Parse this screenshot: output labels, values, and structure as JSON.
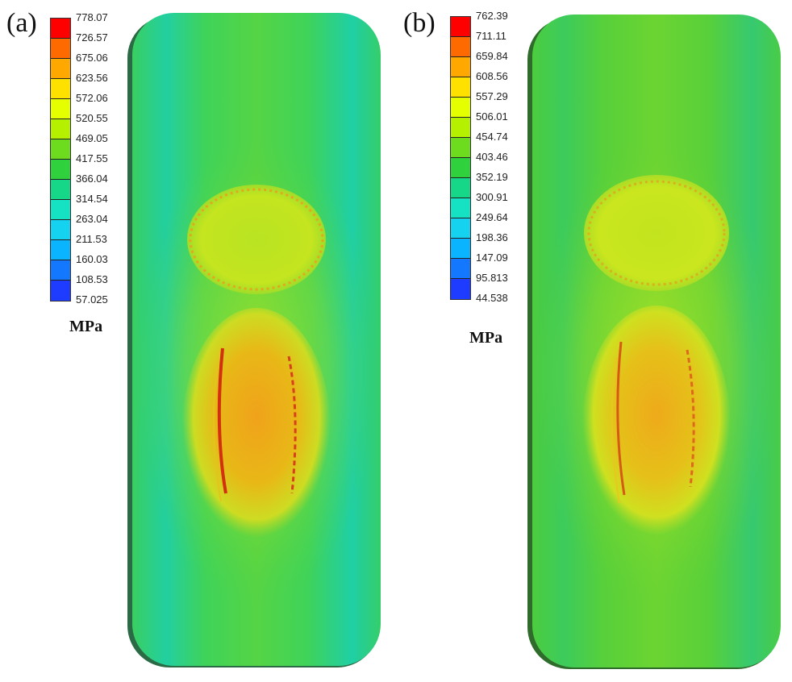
{
  "panels": [
    {
      "label": "(a)",
      "unit": "MPa",
      "ticks": [
        "778.07",
        "726.57",
        "675.06",
        "623.56",
        "572.06",
        "520.55",
        "469.05",
        "417.55",
        "366.04",
        "314.54",
        "263.04",
        "211.53",
        "160.03",
        "108.53",
        "57.025"
      ]
    },
    {
      "label": "(b)",
      "unit": "MPa",
      "ticks": [
        "762.39",
        "711.11",
        "659.84",
        "608.56",
        "557.29",
        "506.01",
        "454.74",
        "403.46",
        "352.19",
        "300.91",
        "249.64",
        "198.36",
        "147.09",
        "95.813",
        "44.538"
      ]
    }
  ],
  "colors": {
    "legend_scale": [
      "#ff0000",
      "#ff6a00",
      "#ffa800",
      "#ffe100",
      "#e6ff00",
      "#b4f000",
      "#6edc1e",
      "#2fd23c",
      "#16d787",
      "#15e1c3",
      "#14d2f0",
      "#0ab4ff",
      "#1478ff",
      "#1e3cff",
      "#0000ff"
    ],
    "background_field_a": "#2fd080",
    "background_field_b": "#46cc3c"
  }
}
